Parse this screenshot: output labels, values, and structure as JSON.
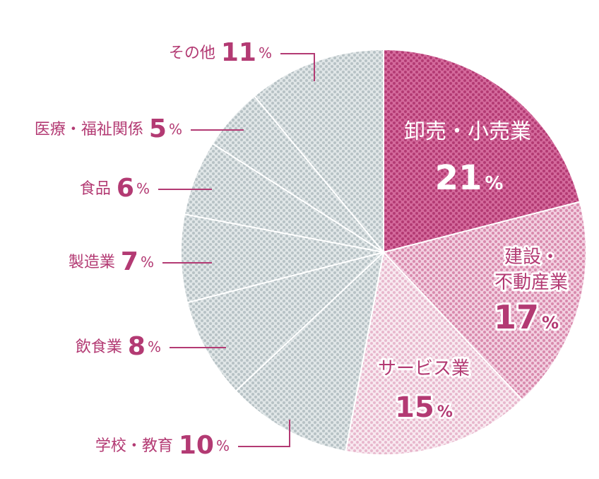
{
  "chart_data": {
    "type": "pie",
    "slices": [
      {
        "label": "卸売・小売業",
        "value": 21,
        "color": "#b33a73",
        "dot_bg": "#d46a9c"
      },
      {
        "label_lines": [
          "建設・",
          "不動産業"
        ],
        "value": 17,
        "color": "#d98aad",
        "dot_bg": "#f2cfe0"
      },
      {
        "label": "サービス業",
        "value": 15,
        "color": "#e8b8cd",
        "dot_bg": "#f8e9f0"
      },
      {
        "label": "学校・教育",
        "value": 10,
        "color": "#b7c2c5",
        "dot_bg": "#e0e6e7"
      },
      {
        "label": "飲食業",
        "value": 8,
        "color": "#b7c2c5",
        "dot_bg": "#e0e6e7"
      },
      {
        "label": "製造業",
        "value": 7,
        "color": "#b7c2c5",
        "dot_bg": "#e0e6e7"
      },
      {
        "label": "食品",
        "value": 6,
        "color": "#b7c2c5",
        "dot_bg": "#e0e6e7"
      },
      {
        "label": "医療・福祉関係",
        "value": 5,
        "color": "#b7c2c5",
        "dot_bg": "#e0e6e7"
      },
      {
        "label": "その他",
        "value": 11,
        "color": "#b7c2c5",
        "dot_bg": "#e0e6e7"
      }
    ],
    "percent_sign": "%",
    "accent_color": "#b33a73"
  }
}
